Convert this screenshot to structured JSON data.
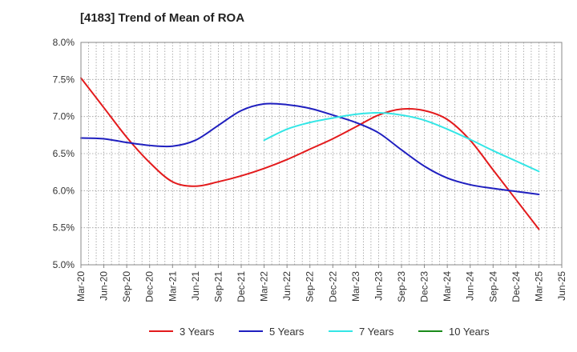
{
  "chart_data": {
    "type": "line",
    "title": "[4183]  Trend of Mean of ROA",
    "xlabel": "",
    "ylabel": "",
    "categories": [
      "Mar-20",
      "Jun-20",
      "Sep-20",
      "Dec-20",
      "Mar-21",
      "Jun-21",
      "Sep-21",
      "Dec-21",
      "Mar-22",
      "Jun-22",
      "Sep-22",
      "Dec-22",
      "Mar-23",
      "Jun-23",
      "Sep-23",
      "Dec-23",
      "Mar-24",
      "Jun-24",
      "Sep-24",
      "Dec-24",
      "Mar-25",
      "Jun-25"
    ],
    "y_ticks": [
      5.0,
      5.5,
      6.0,
      6.5,
      7.0,
      7.5,
      8.0
    ],
    "y_tick_labels": [
      "5.0%",
      "5.5%",
      "6.0%",
      "6.5%",
      "7.0%",
      "7.5%",
      "8.0%"
    ],
    "ylim": [
      5.0,
      8.0
    ],
    "grid": true,
    "legend_position": "bottom",
    "series": [
      {
        "name": "3 Years",
        "color": "#e31a1c",
        "values": [
          7.52,
          7.12,
          6.72,
          6.38,
          6.12,
          6.06,
          6.12,
          6.2,
          6.3,
          6.42,
          6.56,
          6.7,
          6.86,
          7.02,
          7.1,
          7.08,
          6.96,
          6.68,
          6.28,
          5.88,
          5.48,
          null
        ]
      },
      {
        "name": "5 Years",
        "color": "#1f1fbf",
        "values": [
          6.71,
          6.7,
          6.65,
          6.61,
          6.6,
          6.68,
          6.88,
          7.08,
          7.17,
          7.16,
          7.11,
          7.02,
          6.92,
          6.78,
          6.55,
          6.33,
          6.17,
          6.08,
          6.03,
          5.99,
          5.95,
          null
        ]
      },
      {
        "name": "7 Years",
        "color": "#33e6e6",
        "values": [
          null,
          null,
          null,
          null,
          null,
          null,
          null,
          null,
          6.68,
          6.83,
          6.92,
          6.98,
          7.03,
          7.05,
          7.02,
          6.95,
          6.83,
          6.69,
          6.54,
          6.4,
          6.26,
          null
        ]
      },
      {
        "name": "10 Years",
        "color": "#1a8a1a",
        "values": [
          null,
          null,
          null,
          null,
          null,
          null,
          null,
          null,
          null,
          null,
          null,
          null,
          null,
          null,
          null,
          null,
          null,
          null,
          null,
          null,
          null,
          null
        ]
      }
    ]
  }
}
